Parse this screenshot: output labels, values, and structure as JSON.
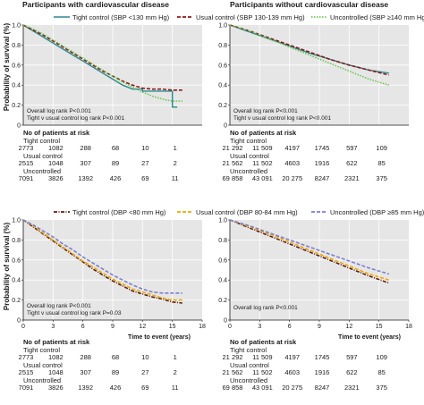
{
  "colors": {
    "tight": "#2a8a8f",
    "usual": "#8b1a1a",
    "uncontrolled": "#5cc43e",
    "tight_dbp": "#5a1e14",
    "usual_dbp": "#f0a800",
    "uncontrolled_dbp": "#7b7fd1",
    "plot_bg": "#e6e6e6",
    "grid": "#ffffff"
  },
  "panels": {
    "top_left_title": "Participants with cardiovascular disease",
    "top_right_title": "Participants without cardiovascular disease"
  },
  "legend_sbp": [
    {
      "label": "Tight control (SBP <130 mm Hg)",
      "color": "#2a8a8f",
      "dash": "solid"
    },
    {
      "label": "Usual control (SBP 130-139 mm Hg)",
      "color": "#8b1a1a",
      "dash": "dashed"
    },
    {
      "label": "Uncontrolled (SBP ≥140 mm Hg)",
      "color": "#5cc43e",
      "dash": "dotted"
    }
  ],
  "legend_dbp": [
    {
      "label": "Tight control (DBP <80 mm Hg)",
      "color": "#5a1e14",
      "dash": "dashdot"
    },
    {
      "label": "Usual control (DBP 80-84 mm Hg)",
      "color": "#f0a800",
      "dash": "dashed"
    },
    {
      "label": "Uncontrolled (DBP ≥85 mm Hg)",
      "color": "#7b7fd1",
      "dash": "dashed"
    }
  ],
  "axis": {
    "ylabel": "Probability of survival (%)",
    "xlabel": "Time to event (years)",
    "yticks": [
      "1.0",
      "0.8",
      "0.6",
      "0.4",
      "0.2",
      "0"
    ],
    "xticks": [
      "0",
      "3",
      "6",
      "9",
      "12",
      "15",
      "18"
    ]
  },
  "stats": {
    "sbp_overall": "Overall log rank P<0.001",
    "sbp_left_pair": "Tight v usual control log rank P<0.001",
    "sbp_right_pair": "Tight v usual control log rank P<0.001",
    "dbp_overall": "Overall log rank P<0.001",
    "dbp_left_pair": "Tight v usual control log rank P=0.03"
  },
  "risk": {
    "header": "No of patients at risk",
    "groups": [
      "Tight control",
      "Usual control",
      "Uncontrolled"
    ],
    "with_cvd": [
      [
        "2773",
        "1082",
        "288",
        "68",
        "10",
        "1"
      ],
      [
        "2515",
        "1048",
        "307",
        "89",
        "27",
        "2"
      ],
      [
        "7091",
        "3826",
        "1392",
        "426",
        "69",
        "11"
      ]
    ],
    "without_cvd": [
      [
        "21 292",
        "11 509",
        "4197",
        "1745",
        "597",
        "109"
      ],
      [
        "21 562",
        "11 502",
        "4603",
        "1916",
        "622",
        "85"
      ],
      [
        "69 858",
        "43 091",
        "20 275",
        "8247",
        "2321",
        "375"
      ]
    ],
    "with_cvd_dbp": [
      [
        "2773",
        "1082",
        "288",
        "68",
        "10",
        "1"
      ],
      [
        "2515",
        "1048",
        "307",
        "89",
        "27",
        "2"
      ],
      [
        "7091",
        "3826",
        "1392",
        "426",
        "69",
        "11"
      ]
    ],
    "without_cvd_dbp": [
      [
        "21 292",
        "11 509",
        "4197",
        "1745",
        "597",
        "109"
      ],
      [
        "21 562",
        "11 502",
        "4603",
        "1916",
        "622",
        "85"
      ],
      [
        "69 858",
        "43 091",
        "20 275",
        "8247",
        "2321",
        "375"
      ]
    ]
  },
  "chart_data": [
    {
      "type": "line",
      "title": "Participants with cardiovascular disease",
      "ylabel": "Probability of survival (%)",
      "xlim": [
        0,
        18
      ],
      "ylim": [
        0,
        1
      ],
      "series": [
        {
          "name": "Tight control (SBP <130 mm Hg)",
          "color": "#2a8a8f",
          "x": [
            0,
            1,
            2,
            3,
            4,
            5,
            6,
            7,
            8,
            9,
            10,
            11,
            12,
            13,
            14,
            15,
            15.5
          ],
          "y": [
            1.0,
            0.94,
            0.88,
            0.82,
            0.76,
            0.7,
            0.64,
            0.58,
            0.52,
            0.46,
            0.4,
            0.36,
            0.34,
            0.34,
            0.34,
            0.18,
            0.18
          ]
        },
        {
          "name": "Usual control (SBP 130-139 mm Hg)",
          "color": "#8b1a1a",
          "x": [
            0,
            1,
            2,
            3,
            4,
            5,
            6,
            7,
            8,
            9,
            10,
            11,
            12,
            13,
            14,
            15,
            16
          ],
          "y": [
            1.0,
            0.95,
            0.9,
            0.84,
            0.78,
            0.72,
            0.66,
            0.6,
            0.54,
            0.49,
            0.44,
            0.4,
            0.37,
            0.36,
            0.36,
            0.35,
            0.35
          ]
        },
        {
          "name": "Uncontrolled (SBP ≥140 mm Hg)",
          "color": "#5cc43e",
          "x": [
            0,
            1,
            2,
            3,
            4,
            5,
            6,
            7,
            8,
            9,
            10,
            11,
            12,
            13,
            14,
            15,
            16
          ],
          "y": [
            1.0,
            0.96,
            0.91,
            0.85,
            0.79,
            0.73,
            0.67,
            0.61,
            0.55,
            0.49,
            0.43,
            0.38,
            0.33,
            0.29,
            0.26,
            0.24,
            0.24
          ]
        }
      ]
    },
    {
      "type": "line",
      "title": "Participants without cardiovascular disease",
      "xlim": [
        0,
        18
      ],
      "ylim": [
        0,
        1
      ],
      "series": [
        {
          "name": "Tight control (SBP <130 mm Hg)",
          "color": "#2a8a8f",
          "x": [
            0,
            2,
            4,
            6,
            8,
            10,
            12,
            14,
            16
          ],
          "y": [
            1.0,
            0.93,
            0.86,
            0.79,
            0.72,
            0.66,
            0.6,
            0.55,
            0.52
          ]
        },
        {
          "name": "Usual control (SBP 130-139 mm Hg)",
          "color": "#8b1a1a",
          "x": [
            0,
            2,
            4,
            6,
            8,
            10,
            12,
            14,
            16
          ],
          "y": [
            1.0,
            0.94,
            0.87,
            0.8,
            0.73,
            0.66,
            0.6,
            0.55,
            0.5
          ]
        },
        {
          "name": "Uncontrolled (SBP ≥140 mm Hg)",
          "color": "#5cc43e",
          "x": [
            0,
            2,
            4,
            6,
            8,
            10,
            12,
            14,
            16
          ],
          "y": [
            1.0,
            0.94,
            0.86,
            0.78,
            0.7,
            0.62,
            0.54,
            0.46,
            0.4
          ]
        }
      ]
    },
    {
      "type": "line",
      "ylabel": "Probability of survival (%)",
      "xlabel": "Time to event (years)",
      "xlim": [
        0,
        18
      ],
      "ylim": [
        0,
        1
      ],
      "series": [
        {
          "name": "Tight control (DBP <80 mm Hg)",
          "color": "#5a1e14",
          "x": [
            0,
            1,
            2,
            3,
            4,
            5,
            6,
            7,
            8,
            9,
            10,
            11,
            12,
            13,
            14,
            15,
            16
          ],
          "y": [
            1.0,
            0.93,
            0.86,
            0.79,
            0.72,
            0.65,
            0.58,
            0.51,
            0.45,
            0.39,
            0.34,
            0.29,
            0.26,
            0.23,
            0.21,
            0.18,
            0.17
          ]
        },
        {
          "name": "Usual control (DBP 80-84 mm Hg)",
          "color": "#f0a800",
          "x": [
            0,
            1,
            2,
            3,
            4,
            5,
            6,
            7,
            8,
            9,
            10,
            11,
            12,
            13,
            14,
            15,
            16
          ],
          "y": [
            1.0,
            0.94,
            0.87,
            0.8,
            0.73,
            0.66,
            0.59,
            0.53,
            0.47,
            0.41,
            0.36,
            0.31,
            0.28,
            0.25,
            0.22,
            0.2,
            0.2
          ]
        },
        {
          "name": "Uncontrolled (DBP ≥85 mm Hg)",
          "color": "#7b7fd1",
          "x": [
            0,
            1,
            2,
            3,
            4,
            5,
            6,
            7,
            8,
            9,
            10,
            11,
            12,
            13,
            14,
            15,
            16
          ],
          "y": [
            1.0,
            0.95,
            0.89,
            0.83,
            0.76,
            0.7,
            0.63,
            0.57,
            0.51,
            0.45,
            0.4,
            0.35,
            0.31,
            0.28,
            0.27,
            0.27,
            0.27
          ]
        }
      ]
    },
    {
      "type": "line",
      "xlabel": "Time to event (years)",
      "xlim": [
        0,
        18
      ],
      "ylim": [
        0,
        1
      ],
      "series": [
        {
          "name": "Tight control (DBP <80 mm Hg)",
          "color": "#5a1e14",
          "x": [
            0,
            2,
            4,
            6,
            8,
            10,
            12,
            14,
            16
          ],
          "y": [
            1.0,
            0.92,
            0.84,
            0.76,
            0.68,
            0.6,
            0.52,
            0.44,
            0.37
          ]
        },
        {
          "name": "Usual control (DBP 80-84 mm Hg)",
          "color": "#f0a800",
          "x": [
            0,
            2,
            4,
            6,
            8,
            10,
            12,
            14,
            16
          ],
          "y": [
            1.0,
            0.93,
            0.86,
            0.78,
            0.7,
            0.62,
            0.54,
            0.46,
            0.4
          ]
        },
        {
          "name": "Uncontrolled (DBP ≥85 mm Hg)",
          "color": "#7b7fd1",
          "x": [
            0,
            2,
            4,
            6,
            8,
            10,
            12,
            14,
            16
          ],
          "y": [
            1.0,
            0.94,
            0.87,
            0.8,
            0.73,
            0.66,
            0.59,
            0.52,
            0.46
          ]
        }
      ]
    }
  ]
}
